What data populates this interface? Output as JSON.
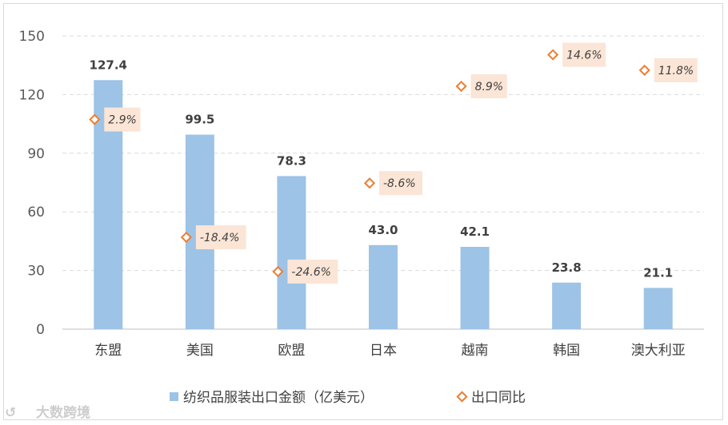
{
  "chart_data": {
    "type": "bar",
    "categories": [
      "东盟",
      "美国",
      "欧盟",
      "日本",
      "越南",
      "韩国",
      "澳大利亚"
    ],
    "series": [
      {
        "name": "纺织品服装出口金额（亿美元）",
        "type": "bar",
        "axis": "left",
        "values": [
          127.4,
          99.5,
          78.3,
          43.0,
          42.1,
          23.8,
          21.1
        ],
        "labels": [
          "127.4",
          "99.5",
          "78.3",
          "43.0",
          "42.1",
          "23.8",
          "21.1"
        ],
        "color": "#9dc3e6"
      },
      {
        "name": "出口同比",
        "type": "scatter",
        "axis": "right-hidden",
        "values": [
          2.9,
          -18.4,
          -24.6,
          -8.6,
          8.9,
          14.6,
          11.8
        ],
        "labels": [
          "2.9%",
          "-18.4%",
          "-24.6%",
          "-8.6%",
          "8.9%",
          "14.6%",
          "11.8%"
        ],
        "color": "#ed7d31"
      }
    ],
    "yticks": [
      "0",
      "30",
      "60",
      "90",
      "120",
      "150"
    ],
    "ylim": [
      0,
      150
    ],
    "y2lim": [
      -35,
      18
    ],
    "grid": true,
    "legend_position": "bottom",
    "label_box_color": "#fbe5d6"
  },
  "watermark": "大数跨境"
}
